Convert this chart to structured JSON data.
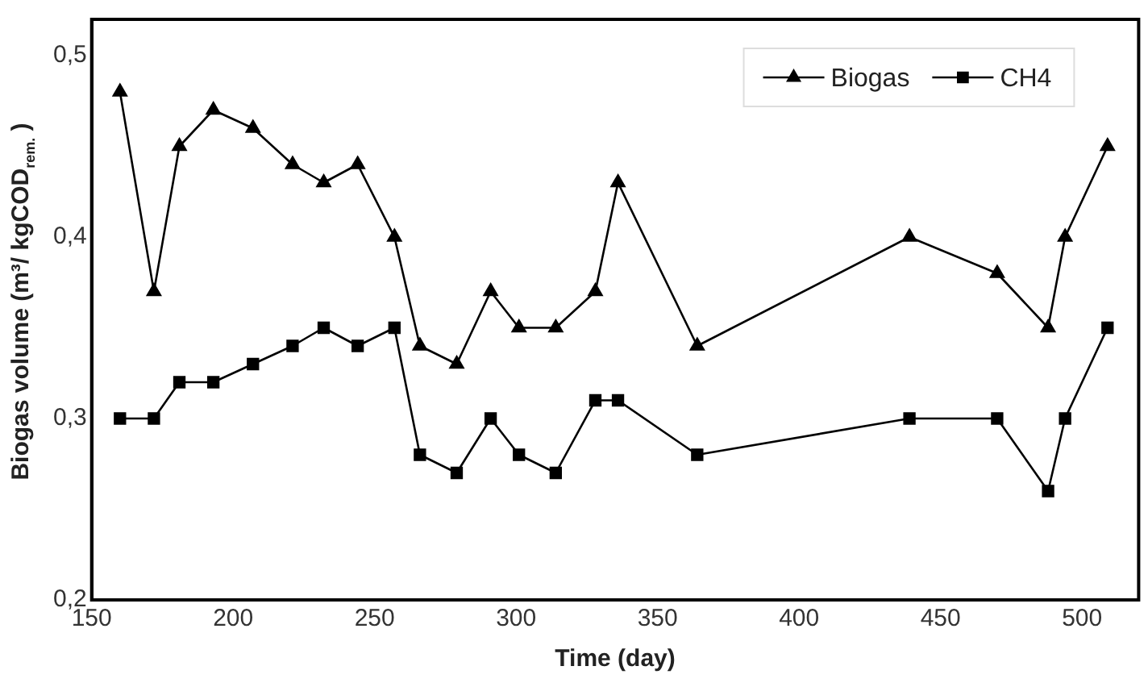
{
  "chart_data": {
    "type": "line",
    "xlabel": "Time (day)",
    "ylabel": "Biogas volume (m³/ kgCOD$_{rem.}$ )",
    "x": [
      160,
      172,
      181,
      193,
      207,
      221,
      232,
      244,
      257,
      266,
      279,
      291,
      301,
      314,
      328,
      336,
      364,
      439,
      470,
      488,
      494,
      509
    ],
    "series": [
      {
        "name": "Biogas",
        "color": "#000000",
        "marker": "triangle",
        "values": [
          0.48,
          0.37,
          0.45,
          0.47,
          0.46,
          0.44,
          0.43,
          0.44,
          0.4,
          0.34,
          0.33,
          0.37,
          0.35,
          0.35,
          0.37,
          0.43,
          0.34,
          0.4,
          0.38,
          0.35,
          0.4,
          0.45
        ]
      },
      {
        "name": "CH4",
        "color": "#000000",
        "marker": "square",
        "values": [
          0.3,
          0.3,
          0.32,
          0.32,
          0.33,
          0.34,
          0.35,
          0.34,
          0.35,
          0.28,
          0.27,
          0.3,
          0.28,
          0.27,
          0.31,
          0.31,
          0.28,
          0.3,
          0.3,
          0.26,
          0.3,
          0.35
        ]
      }
    ],
    "xlim": [
      150,
      520
    ],
    "xticks": [
      150,
      200,
      250,
      300,
      350,
      400,
      450,
      500
    ],
    "ylim": [
      0.2,
      0.52
    ],
    "yticks": [
      {
        "value": 0.2,
        "label": "0,2"
      },
      {
        "value": 0.3,
        "label": "0,3"
      },
      {
        "value": 0.4,
        "label": "0,4"
      },
      {
        "value": 0.5,
        "label": "0,5"
      }
    ],
    "grid": false,
    "legend": "top right",
    "line_style": "solid"
  }
}
